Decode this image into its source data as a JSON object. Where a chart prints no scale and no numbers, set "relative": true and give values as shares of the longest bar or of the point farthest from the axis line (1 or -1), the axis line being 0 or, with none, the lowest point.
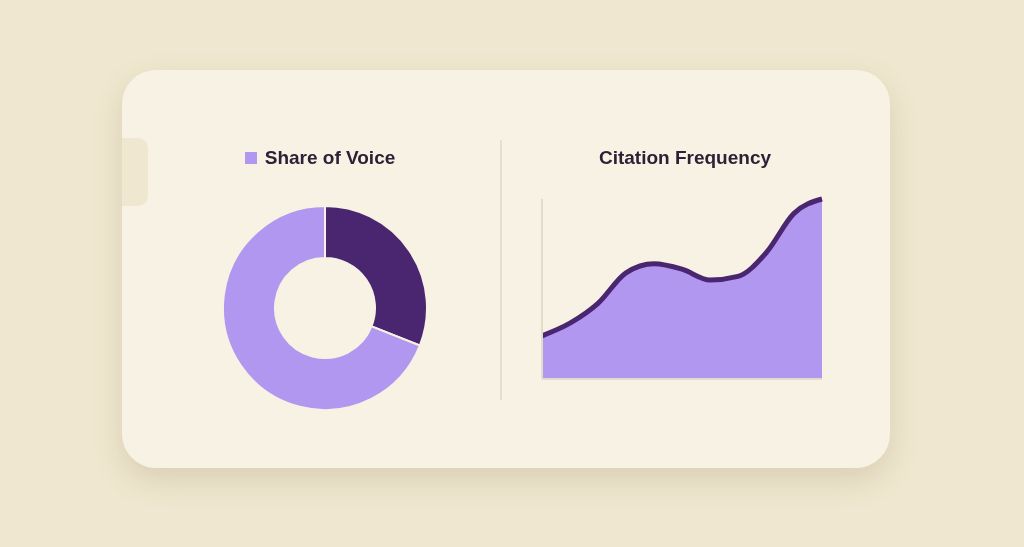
{
  "chart_data": [
    {
      "type": "donut",
      "title": "Share of Voice",
      "categories": [
        null,
        null
      ],
      "values": [
        31,
        69
      ],
      "colors": [
        "#4b2670",
        "#b197f0"
      ]
    },
    {
      "type": "area",
      "title": "Citation Frequency",
      "relative": true,
      "categories": [
        null,
        null,
        null,
        null,
        null,
        null,
        null,
        null,
        null,
        null,
        null
      ],
      "series": [
        {
          "color": "#b197f0",
          "values": [
            0.24,
            0.31,
            0.42,
            0.59,
            0.64,
            0.61,
            0.55,
            0.57,
            0.7,
            0.92,
            1.0
          ]
        }
      ]
    }
  ]
}
